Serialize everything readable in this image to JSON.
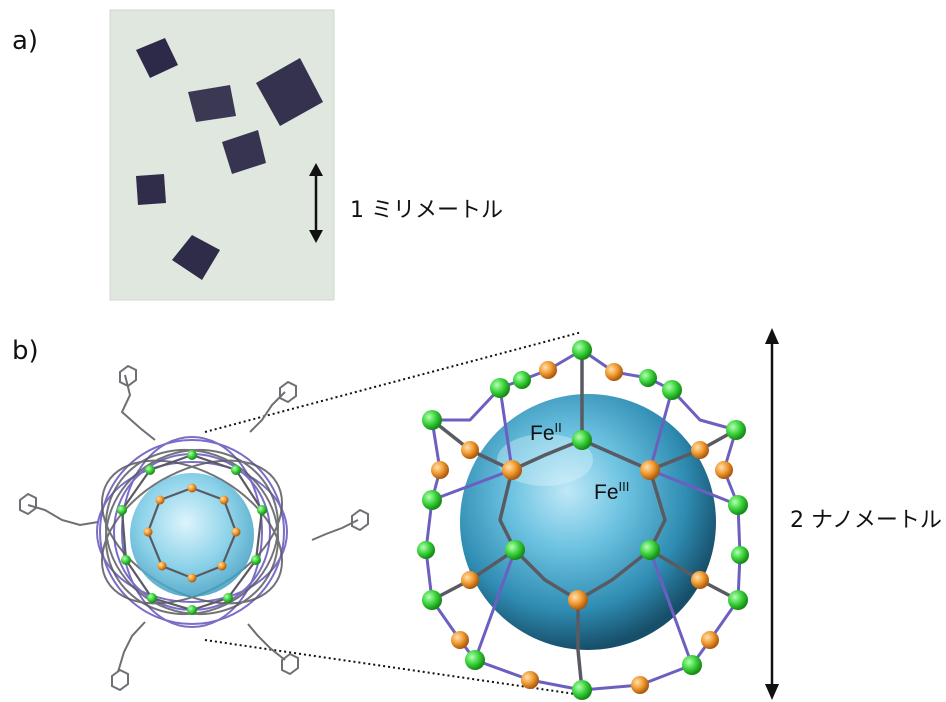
{
  "panels": {
    "a_label": "a)",
    "b_label": "b)"
  },
  "photo": {
    "background_color": "#dfe7df",
    "crystal_color": "#2c2a48"
  },
  "scale_bars": {
    "millimeter_label": "1 ミリメートル",
    "nanometer_label": "2 ナノメートル"
  },
  "cage_labels": {
    "fe2_base": "Fe",
    "fe2_sup": "II",
    "fe3_base": "Fe",
    "fe3_sup": "III"
  },
  "colors": {
    "fe2_node": "#3bd33b",
    "fe3_node": "#f0992e",
    "sphere": "#5ab7d6",
    "linker_purple": "#6b5fc0",
    "linker_gray": "#5a5a62"
  }
}
